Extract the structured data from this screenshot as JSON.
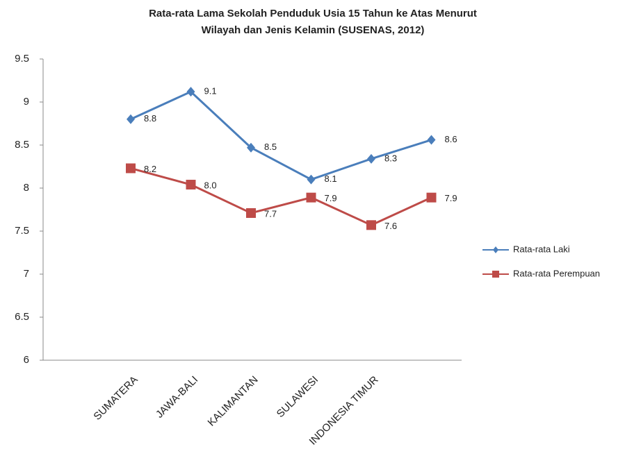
{
  "chart_data": {
    "type": "line",
    "title": [
      "Rata-rata Lama Sekolah Penduduk Usia 15 Tahun ke Atas Menurut",
      "Wilayah dan Jenis Kelamin (SUSENAS, 2012)"
    ],
    "categories": [
      "SUMATERA",
      "JAWA-BALI",
      "KALIMANTAN",
      "SULAWESI",
      "INDONESIA TIMUR",
      null
    ],
    "series": [
      {
        "name": "Rata-rata Laki",
        "color": "#4a7ebb",
        "marker": "diamond",
        "values": [
          8.8,
          9.12,
          8.47,
          8.1,
          8.34,
          8.56
        ],
        "value_labels": [
          "8.8",
          "9.1",
          "8.5",
          "8.1",
          "8.3",
          "8.6"
        ]
      },
      {
        "name": "Rata-rata Perempuan",
        "color": "#be4b48",
        "marker": "square",
        "values": [
          8.23,
          8.04,
          7.71,
          7.89,
          7.57,
          7.89
        ],
        "value_labels": [
          "8.2",
          "8.0",
          "7.7",
          "7.9",
          "7.6",
          "7.9"
        ]
      }
    ],
    "ylim": [
      6,
      9.5
    ],
    "yticks": [
      6,
      6.5,
      7,
      7.5,
      8,
      8.5,
      9,
      9.5
    ],
    "grid": false,
    "legend": "right"
  }
}
